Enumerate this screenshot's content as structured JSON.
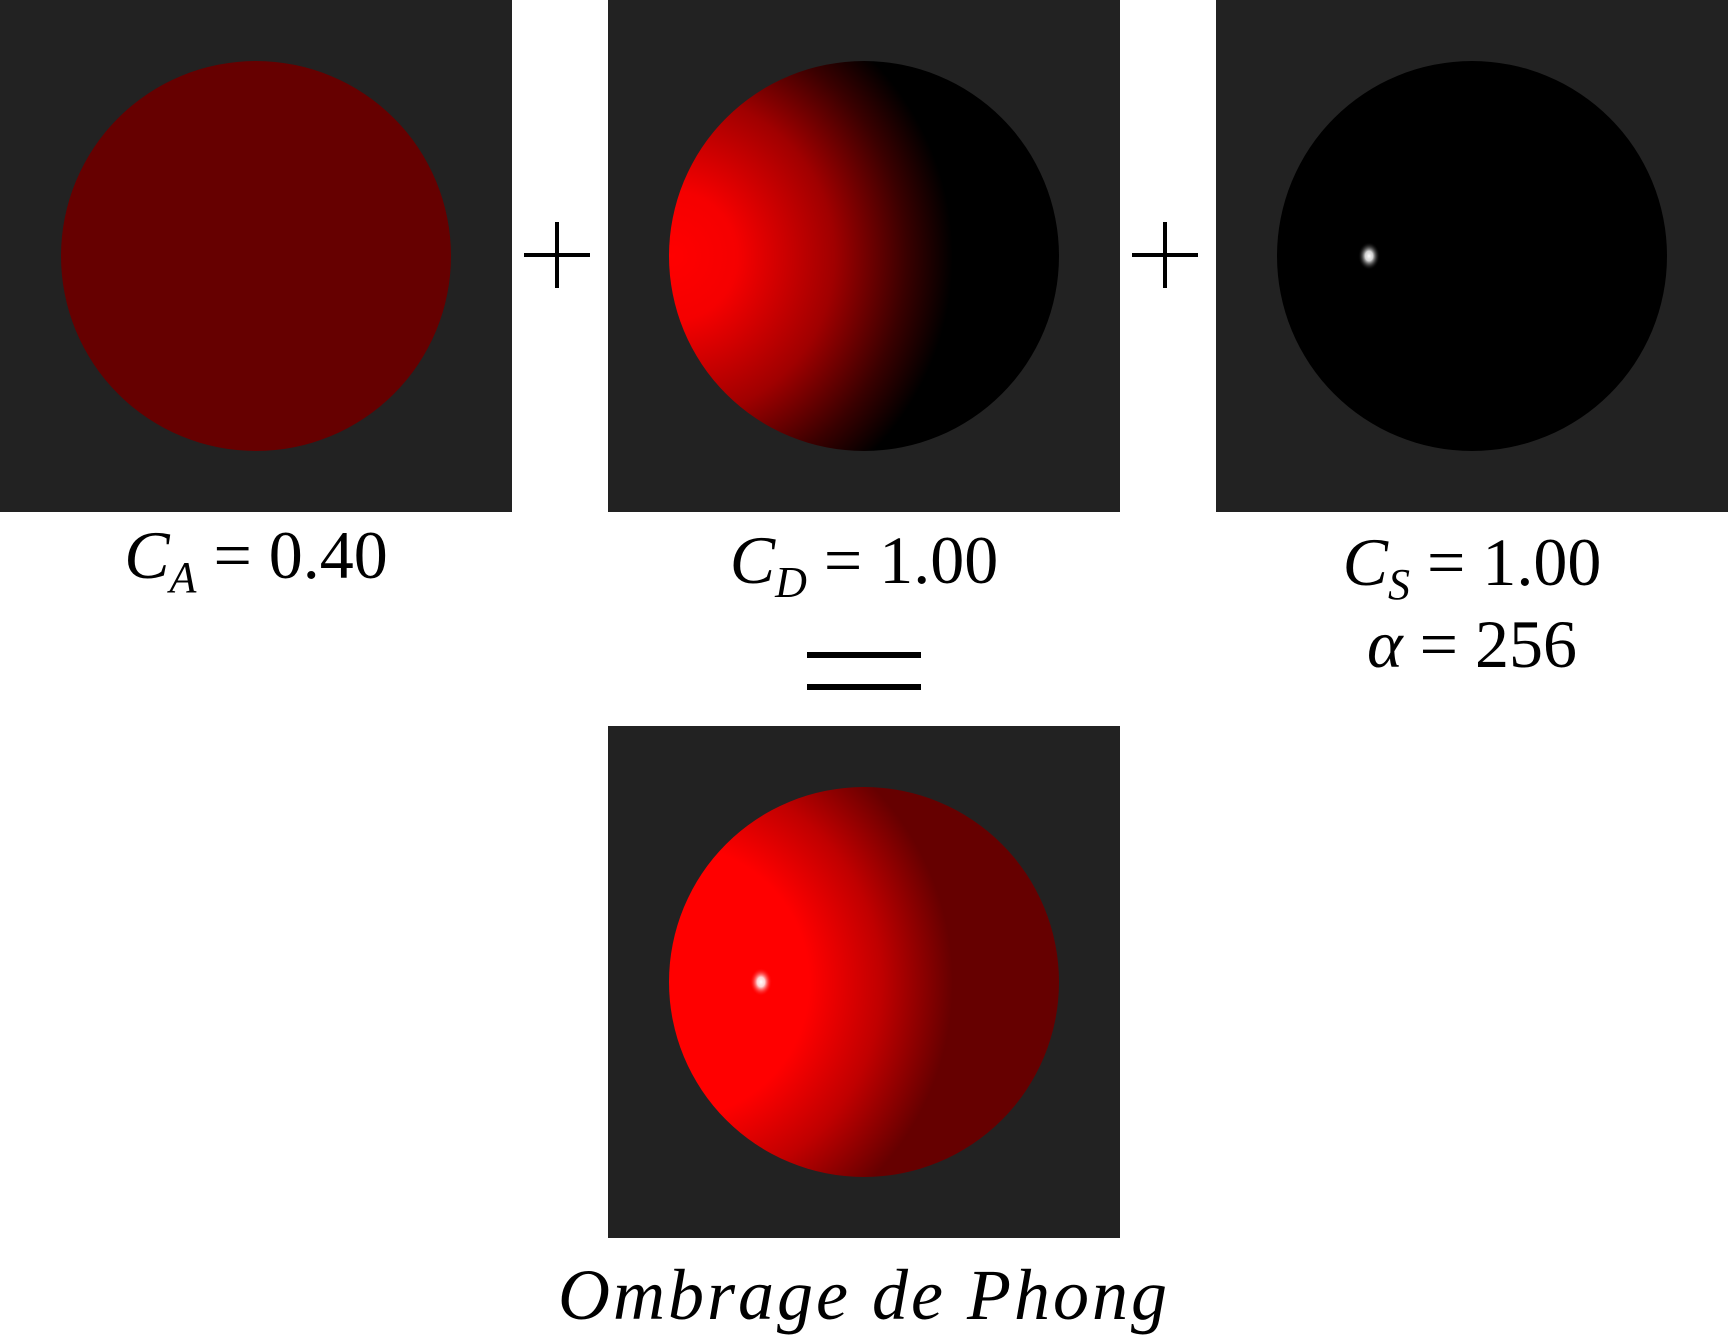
{
  "colors": {
    "panel_background": "#222222",
    "sphere_base": "#ff0000",
    "ambient_tint": "#660000",
    "shadow": "#000000",
    "highlight": "#ffffff"
  },
  "terms": {
    "ambient": {
      "coef_symbol": "C",
      "coef_subscript": "A",
      "equals": "=",
      "value": "0.40"
    },
    "diffuse": {
      "coef_symbol": "C",
      "coef_subscript": "D",
      "equals": "=",
      "value": "1.00"
    },
    "specular": {
      "coef_symbol": "C",
      "coef_subscript": "S",
      "equals": "=",
      "value": "1.00",
      "exponent_symbol": "α",
      "exponent_value": "256"
    }
  },
  "caption": "Ombrage de Phong"
}
